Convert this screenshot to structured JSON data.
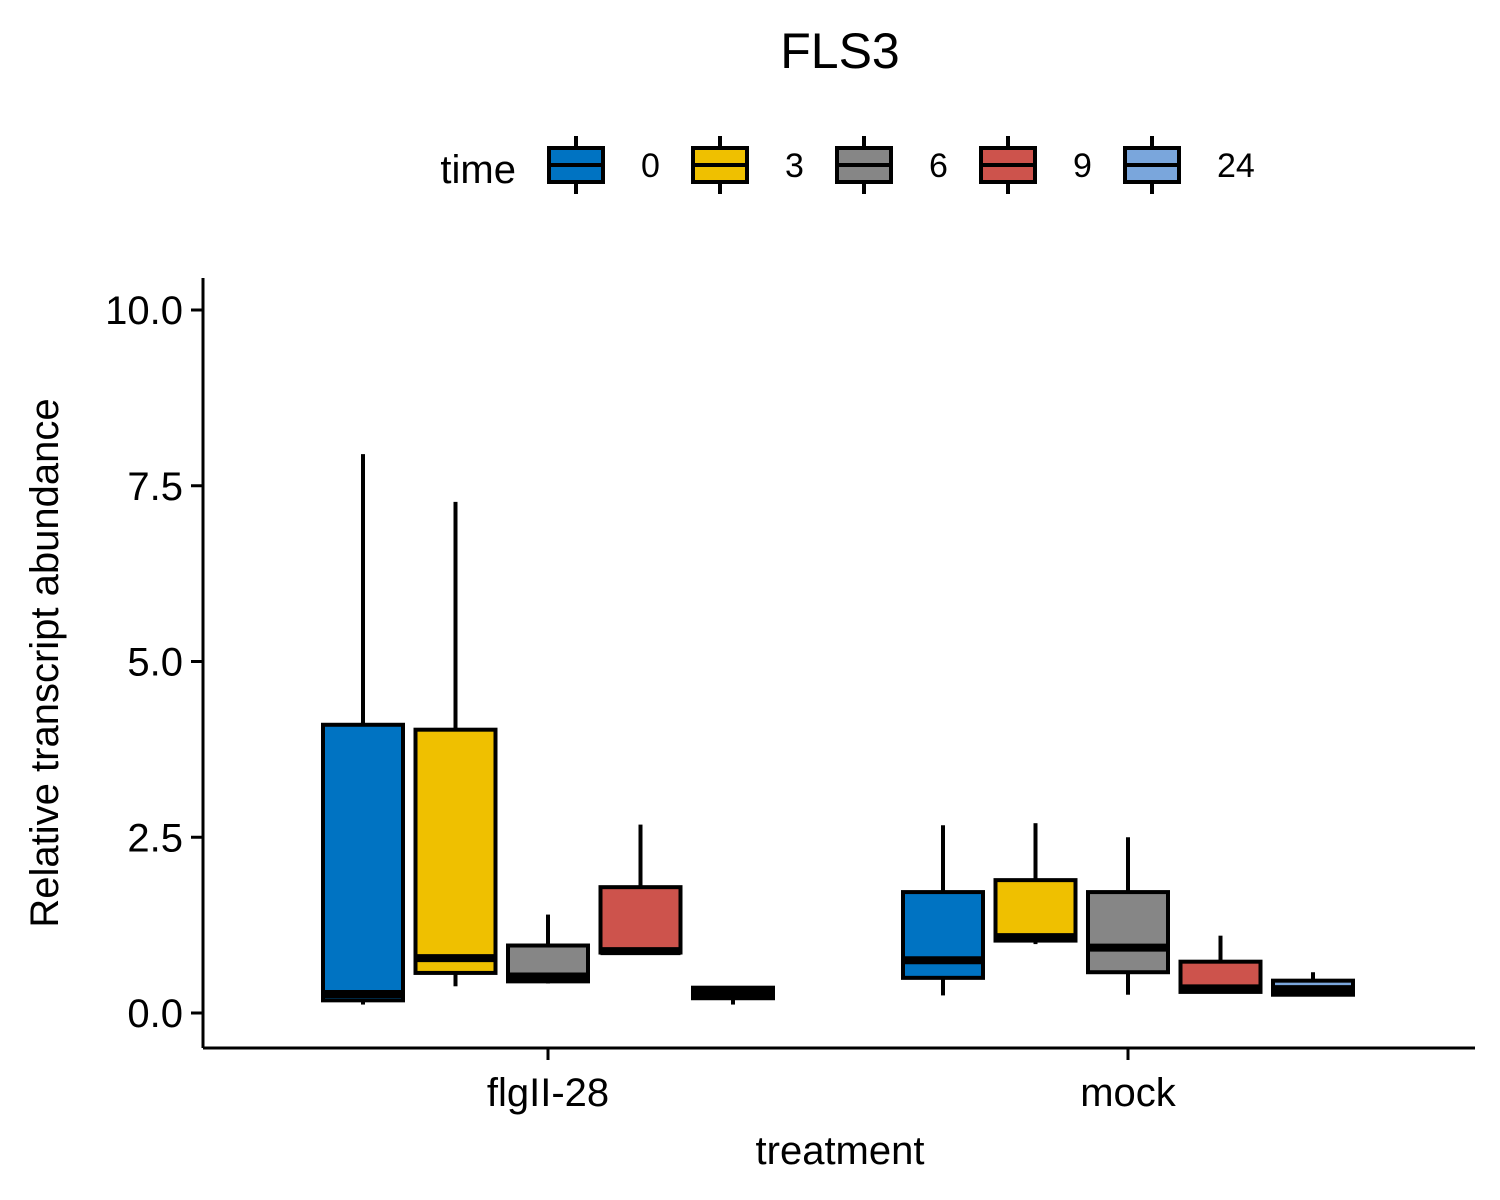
{
  "chart_data": {
    "type": "boxplot",
    "title": "FLS3",
    "xlabel": "treatment",
    "ylabel": "Relative transcript abundance",
    "ylim": [
      -0.5,
      10.5
    ],
    "yticks": [
      0.0,
      2.5,
      5.0,
      7.5,
      10.0
    ],
    "ytick_labels": [
      "0.0",
      "2.5",
      "5.0",
      "7.5",
      "10.0"
    ],
    "categories": [
      "flgII-28",
      "mock"
    ],
    "legend": {
      "title": "time",
      "position": "top",
      "entries": [
        {
          "label": "0",
          "color": "#0073C2"
        },
        {
          "label": "3",
          "color": "#EFC000"
        },
        {
          "label": "6",
          "color": "#868686"
        },
        {
          "label": "9",
          "color": "#CD534C"
        },
        {
          "label": "24",
          "color": "#7AA6DC"
        }
      ]
    },
    "series": [
      {
        "name": "0",
        "boxes": [
          {
            "min": 0.12,
            "q1": 0.18,
            "median": 0.27,
            "q3": 4.1,
            "max": 7.95
          },
          {
            "min": 0.25,
            "q1": 0.5,
            "median": 0.75,
            "q3": 1.72,
            "max": 2.67
          }
        ]
      },
      {
        "name": "3",
        "boxes": [
          {
            "min": 0.38,
            "q1": 0.57,
            "median": 0.78,
            "q3": 4.03,
            "max": 7.27
          },
          {
            "min": 0.98,
            "q1": 1.03,
            "median": 1.08,
            "q3": 1.89,
            "max": 2.7
          }
        ]
      },
      {
        "name": "6",
        "boxes": [
          {
            "min": 0.42,
            "q1": 0.45,
            "median": 0.52,
            "q3": 0.96,
            "max": 1.4
          },
          {
            "min": 0.26,
            "q1": 0.58,
            "median": 0.93,
            "q3": 1.72,
            "max": 2.5
          }
        ]
      },
      {
        "name": "9",
        "boxes": [
          {
            "min": 0.84,
            "q1": 0.86,
            "median": 0.88,
            "q3": 1.79,
            "max": 2.68
          },
          {
            "min": 0.3,
            "q1": 0.3,
            "median": 0.35,
            "q3": 0.73,
            "max": 1.1
          }
        ]
      },
      {
        "name": "24",
        "boxes": [
          {
            "min": 0.12,
            "q1": 0.21,
            "median": 0.28,
            "q3": 0.36,
            "max": 0.38
          },
          {
            "min": 0.26,
            "q1": 0.26,
            "median": 0.34,
            "q3": 0.46,
            "max": 0.58
          }
        ]
      }
    ]
  }
}
